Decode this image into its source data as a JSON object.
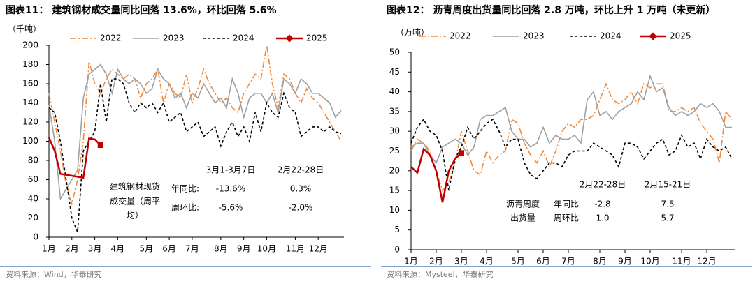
{
  "chart_data": [
    {
      "type": "line",
      "title": "图表11：  建筑钢材成交量同比回落 13.6%，环比回落 5.6%",
      "unit_label": "（千吨）",
      "source": "资料来源：Wind，华泰研究",
      "categories": [
        "1月",
        null,
        null,
        null,
        "2月",
        null,
        null,
        null,
        "3月",
        null,
        null,
        null,
        "4月",
        null,
        null,
        null,
        null,
        "5月",
        null,
        null,
        null,
        "6月",
        null,
        null,
        null,
        "7月",
        null,
        null,
        null,
        null,
        "8月",
        null,
        null,
        null,
        "9月",
        null,
        null,
        null,
        "10月",
        null,
        null,
        null,
        null,
        "11月",
        null,
        null,
        null,
        "12月",
        null,
        null,
        null,
        null
      ],
      "ylim": [
        0,
        200
      ],
      "yticks": [
        0,
        20,
        40,
        60,
        80,
        100,
        120,
        140,
        160,
        180,
        200
      ],
      "series": [
        {
          "name": "2022",
          "color": "#f08a3c",
          "style": "dashdot",
          "values": [
            150,
            120,
            90,
            55,
            35,
            60,
            100,
            183,
            160,
            150,
            165,
            175,
            170,
            165,
            170,
            165,
            145,
            160,
            165,
            175,
            140,
            160,
            150,
            145,
            170,
            140,
            155,
            175,
            160,
            150,
            140,
            145,
            135,
            130,
            150,
            160,
            170,
            165,
            200,
            160,
            135,
            170,
            165,
            150,
            140,
            155,
            145,
            140,
            130,
            120,
            110,
            100
          ]
        },
        {
          "name": "2023",
          "color": "#a0a0a0",
          "style": "solid",
          "values": [
            138,
            100,
            40,
            50,
            60,
            70,
            145,
            170,
            175,
            180,
            170,
            150,
            175,
            165,
            160,
            165,
            160,
            150,
            155,
            175,
            165,
            160,
            145,
            150,
            135,
            150,
            145,
            160,
            150,
            140,
            145,
            135,
            165,
            150,
            125,
            145,
            150,
            150,
            140,
            150,
            130,
            165,
            160,
            150,
            165,
            160,
            150,
            150,
            145,
            140,
            125,
            132
          ]
        },
        {
          "name": "2024",
          "color": "#000000",
          "style": "dash",
          "values": [
            135,
            130,
            100,
            60,
            20,
            5,
            90,
            100,
            110,
            160,
            120,
            165,
            165,
            160,
            140,
            130,
            140,
            135,
            140,
            130,
            140,
            120,
            125,
            130,
            110,
            115,
            120,
            105,
            110,
            115,
            95,
            110,
            120,
            105,
            115,
            100,
            130,
            110,
            140,
            130,
            125,
            150,
            135,
            130,
            105,
            110,
            115,
            115,
            110,
            115,
            110,
            108
          ]
        },
        {
          "name": "2025",
          "color": "#c00000",
          "style": "solid",
          "marker": "square",
          "values": [
            104,
            90,
            66,
            65,
            64,
            63,
            62,
            103,
            102,
            96,
            null,
            null,
            null,
            null,
            null,
            null,
            null,
            null,
            null,
            null,
            null,
            null,
            null,
            null,
            null,
            null,
            null,
            null,
            null,
            null,
            null,
            null,
            null,
            null,
            null,
            null,
            null,
            null,
            null,
            null,
            null,
            null,
            null,
            null,
            null,
            null,
            null,
            null,
            null,
            null,
            null,
            null
          ]
        }
      ],
      "annotation": [
        "3月1-3月7日",
        "2月22-28日",
        "建筑钢材现货",
        "成交量（周平",
        "均）",
        "年同比:",
        "-13.6%",
        "0.3%",
        "周环比:",
        "-5.6%",
        "-2.0%"
      ]
    },
    {
      "type": "line",
      "title": "图表12：  沥青周度出货量同比回落 2.8 万吨，环比上升 1 万吨（未更新）",
      "unit_label": "（万吨）",
      "source": "资料来源：Mysteel，华泰研究",
      "categories": [
        "1月",
        null,
        null,
        null,
        "2月",
        null,
        null,
        null,
        "3月",
        null,
        null,
        null,
        "4月",
        null,
        null,
        null,
        null,
        "5月",
        null,
        null,
        null,
        "6月",
        null,
        null,
        null,
        "7月",
        null,
        null,
        null,
        null,
        "8月",
        null,
        null,
        null,
        "9月",
        null,
        null,
        null,
        "10月",
        null,
        null,
        null,
        null,
        "11月",
        null,
        null,
        null,
        "12月",
        null,
        null,
        null,
        null
      ],
      "ylim": [
        0,
        50
      ],
      "yticks": [
        0,
        5,
        10,
        15,
        20,
        25,
        30,
        35,
        40,
        45,
        50
      ],
      "series": [
        {
          "name": "2022",
          "color": "#f08a3c",
          "style": "dashdot",
          "values": [
            25,
            28,
            27,
            25,
            20,
            15,
            17,
            22,
            30,
            25,
            20,
            19,
            25,
            22,
            24,
            25,
            33,
            32,
            27,
            24,
            22,
            25,
            21,
            25,
            30,
            32,
            31,
            33,
            33,
            34,
            38,
            42,
            38,
            37,
            38,
            40,
            37,
            42,
            41,
            42,
            42,
            35,
            35,
            36,
            35,
            36,
            32,
            30,
            28,
            22,
            35,
            33
          ]
        },
        {
          "name": "2023",
          "color": "#a0a0a0",
          "style": "solid",
          "values": [
            26,
            27,
            27,
            24,
            22,
            26,
            27,
            28,
            27,
            24,
            26,
            33,
            34,
            34,
            35,
            36,
            30,
            28,
            28,
            26,
            27,
            31,
            27,
            29,
            28,
            28,
            29,
            27,
            38,
            40,
            34,
            35,
            33,
            35,
            36,
            37,
            40,
            38,
            44,
            40,
            41,
            36,
            34,
            35,
            34,
            35,
            37,
            36,
            37,
            35,
            31,
            31
          ]
        },
        {
          "name": "2024",
          "color": "#000000",
          "style": "dash",
          "values": [
            27,
            31,
            33,
            30,
            29,
            25,
            15,
            23,
            26,
            31,
            28,
            30,
            32,
            33,
            30,
            26,
            28,
            28,
            22,
            19,
            18,
            20,
            22,
            22,
            21,
            24,
            25,
            25,
            25,
            27,
            26,
            25,
            24,
            21,
            27,
            27,
            26,
            23,
            25,
            27,
            28,
            24,
            25,
            29,
            26,
            27,
            23,
            28,
            26,
            25,
            26,
            23
          ]
        },
        {
          "name": "2025",
          "color": "#c00000",
          "style": "solid",
          "marker": "square",
          "values": [
            21,
            19.5,
            25.5,
            24,
            20,
            12,
            20,
            23,
            24.5,
            null,
            null,
            null,
            null,
            null,
            null,
            null,
            null,
            null,
            null,
            null,
            null,
            null,
            null,
            null,
            null,
            null,
            null,
            null,
            null,
            null,
            null,
            null,
            null,
            null,
            null,
            null,
            null,
            null,
            null,
            null,
            null,
            null,
            null,
            null,
            null,
            null,
            null,
            null,
            null,
            null,
            null,
            null
          ]
        }
      ],
      "annotation": [
        "2月22-28日",
        "2月15-21日",
        "沥青周度",
        "年同比",
        "-2.8",
        "7.5",
        "出货量",
        "周环比",
        "1.0",
        "5.7"
      ]
    }
  ]
}
